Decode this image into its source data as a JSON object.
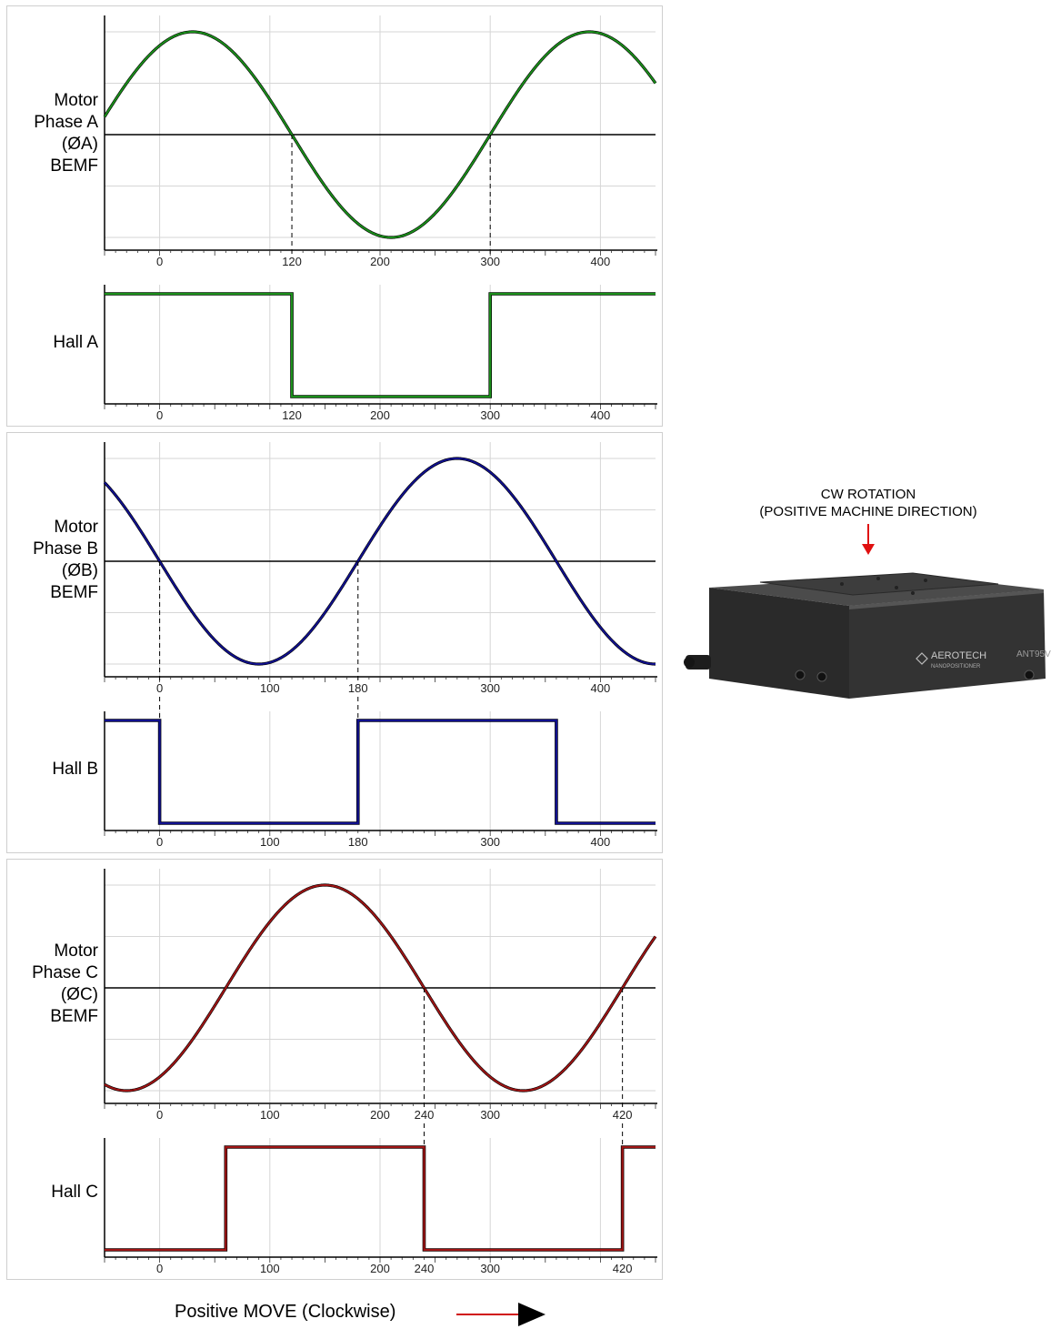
{
  "chart_data": [
    {
      "type": "line",
      "panel": "a",
      "ylabel_lines": [
        "Motor",
        "Phase A",
        "(ØA)",
        "BEMF"
      ],
      "color": "#1a8f1a",
      "phase_deg": 30,
      "xlim": [
        -50,
        450
      ],
      "ticks": [
        "0",
        "120",
        "200",
        "300",
        "400"
      ],
      "tick_values": [
        0,
        120,
        200,
        300,
        400
      ],
      "markers": [
        120,
        300
      ]
    },
    {
      "type": "line",
      "panel": "a",
      "ylabel_lines": [
        "Hall A"
      ],
      "color": "#1a8f1a",
      "hall": true,
      "states": [
        [
          -50,
          120,
          1
        ],
        [
          120,
          300,
          0
        ],
        [
          300,
          450,
          1
        ]
      ],
      "xlim": [
        -50,
        450
      ],
      "ticks": [
        "0",
        "120",
        "200",
        "300",
        "400"
      ],
      "tick_values": [
        0,
        120,
        200,
        300,
        400
      ]
    },
    {
      "type": "line",
      "panel": "b",
      "ylabel_lines": [
        "Motor",
        "Phase B",
        "(ØB)",
        "BEMF"
      ],
      "color": "#10108f",
      "phase_deg": -90,
      "xlim": [
        -50,
        450
      ],
      "ticks": [
        "0",
        "100",
        "180",
        "300",
        "400"
      ],
      "tick_values": [
        0,
        100,
        180,
        300,
        400
      ],
      "markers": [
        0,
        180
      ]
    },
    {
      "type": "line",
      "panel": "b",
      "ylabel_lines": [
        "Hall B"
      ],
      "color": "#10108f",
      "hall": true,
      "states": [
        [
          -50,
          0,
          1
        ],
        [
          0,
          180,
          0
        ],
        [
          180,
          360,
          1
        ],
        [
          360,
          450,
          0
        ]
      ],
      "xlim": [
        -50,
        450
      ],
      "ticks": [
        "0",
        "100",
        "180",
        "300",
        "400"
      ],
      "tick_values": [
        0,
        100,
        180,
        300,
        400
      ]
    },
    {
      "type": "line",
      "panel": "c",
      "ylabel_lines": [
        "Motor",
        "Phase C",
        "(ØC)",
        "BEMF"
      ],
      "color": "#a01414",
      "phase_deg": 150,
      "xlim": [
        -50,
        450
      ],
      "ticks": [
        "0",
        "100",
        "200",
        "240",
        "300",
        "420"
      ],
      "tick_values": [
        0,
        100,
        200,
        240,
        300,
        420
      ],
      "markers": [
        240,
        420
      ]
    },
    {
      "type": "line",
      "panel": "c",
      "ylabel_lines": [
        "Hall C"
      ],
      "color": "#a01414",
      "hall": true,
      "states": [
        [
          -50,
          60,
          0
        ],
        [
          60,
          240,
          1
        ],
        [
          240,
          420,
          0
        ],
        [
          420,
          450,
          1
        ]
      ],
      "xlim": [
        -50,
        450
      ],
      "ticks": [
        "0",
        "100",
        "200",
        "240",
        "300",
        "420"
      ],
      "tick_values": [
        0,
        100,
        200,
        240,
        300,
        420
      ]
    }
  ],
  "rotation_note": {
    "line1": "CW ROTATION",
    "line2": "(POSITIVE MACHINE DIRECTION)"
  },
  "stage": {
    "brand": "AEROTECH",
    "sub": "NANOPOSITIONER",
    "model": "ANT95V"
  },
  "footer": {
    "label": "Positive MOVE (Clockwise)"
  }
}
